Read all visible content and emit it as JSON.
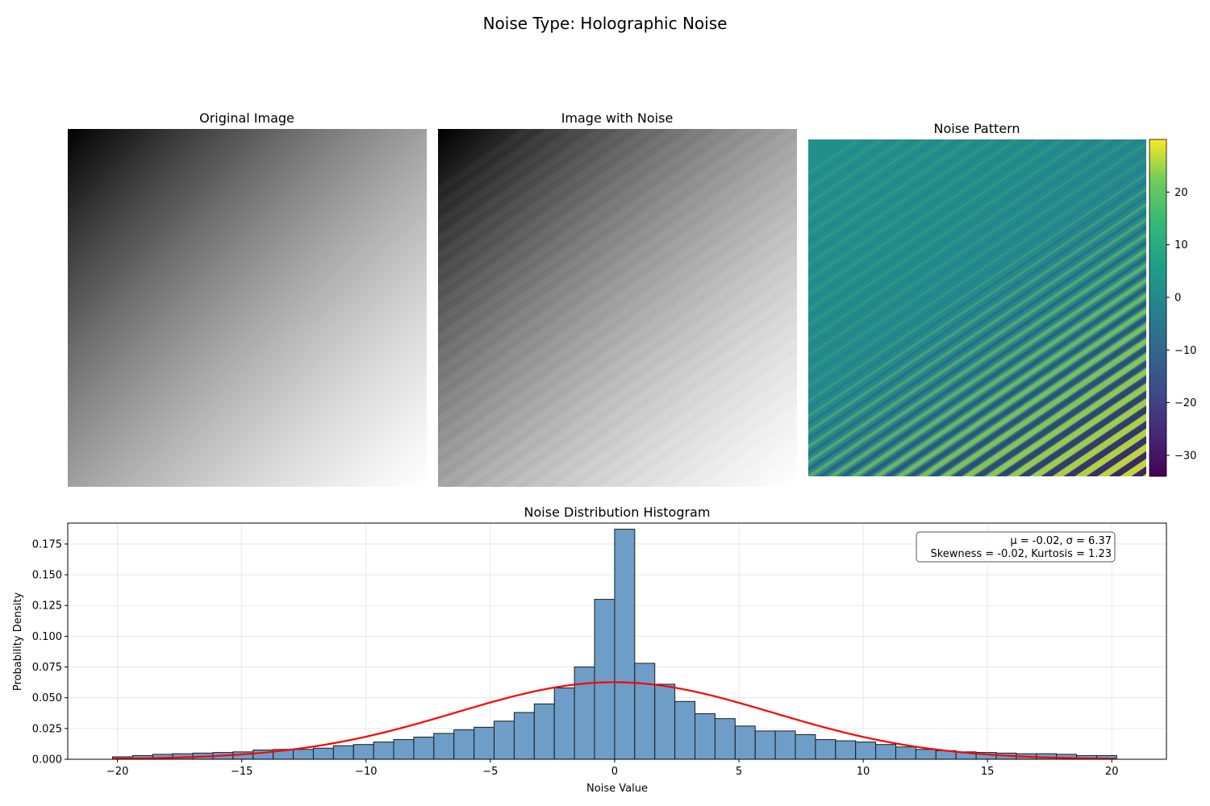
{
  "figure": {
    "title": "Noise Type: Holographic Noise"
  },
  "panels": {
    "original": {
      "title": "Original Image"
    },
    "noisy": {
      "title": "Image with Noise"
    },
    "pattern": {
      "title": "Noise Pattern",
      "colormap": "viridis",
      "colorbar": {
        "ticks": [
          20,
          10,
          0,
          -10,
          -20,
          -30
        ],
        "range": [
          -34,
          30
        ]
      }
    }
  },
  "stats_box": {
    "line1": "μ = -0.02, σ = 6.37",
    "line2": "Skewness = -0.02, Kurtosis = 1.23"
  },
  "chart_data": {
    "type": "bar",
    "title": "Noise Distribution Histogram",
    "xlabel": "Noise Value",
    "ylabel": "Probability Density",
    "xlim": [
      -22,
      22.2
    ],
    "ylim": [
      0,
      0.192
    ],
    "xticks": [
      -20,
      -15,
      -10,
      -5,
      0,
      5,
      10,
      15,
      20
    ],
    "yticks": [
      0.0,
      0.025,
      0.05,
      0.075,
      0.1,
      0.125,
      0.15,
      0.175
    ],
    "ytick_labels": [
      "0.000",
      "0.025",
      "0.050",
      "0.075",
      "0.100",
      "0.125",
      "0.150",
      "0.175"
    ],
    "grid": true,
    "bins": {
      "start": -20.2,
      "width": 0.808,
      "densities": [
        0.002,
        0.003,
        0.004,
        0.0045,
        0.005,
        0.0055,
        0.006,
        0.0075,
        0.008,
        0.008,
        0.009,
        0.011,
        0.012,
        0.014,
        0.016,
        0.018,
        0.021,
        0.024,
        0.026,
        0.031,
        0.038,
        0.045,
        0.058,
        0.075,
        0.13,
        0.187,
        0.078,
        0.061,
        0.047,
        0.037,
        0.033,
        0.027,
        0.023,
        0.023,
        0.02,
        0.016,
        0.015,
        0.014,
        0.012,
        0.01,
        0.008,
        0.007,
        0.006,
        0.0055,
        0.005,
        0.0045,
        0.0045,
        0.004,
        0.003,
        0.003
      ]
    },
    "fit_curve": {
      "type": "normal",
      "mu": -0.02,
      "sigma": 6.37
    },
    "bar_color": "#6e9ec8",
    "curve_color": "#ff0000"
  }
}
